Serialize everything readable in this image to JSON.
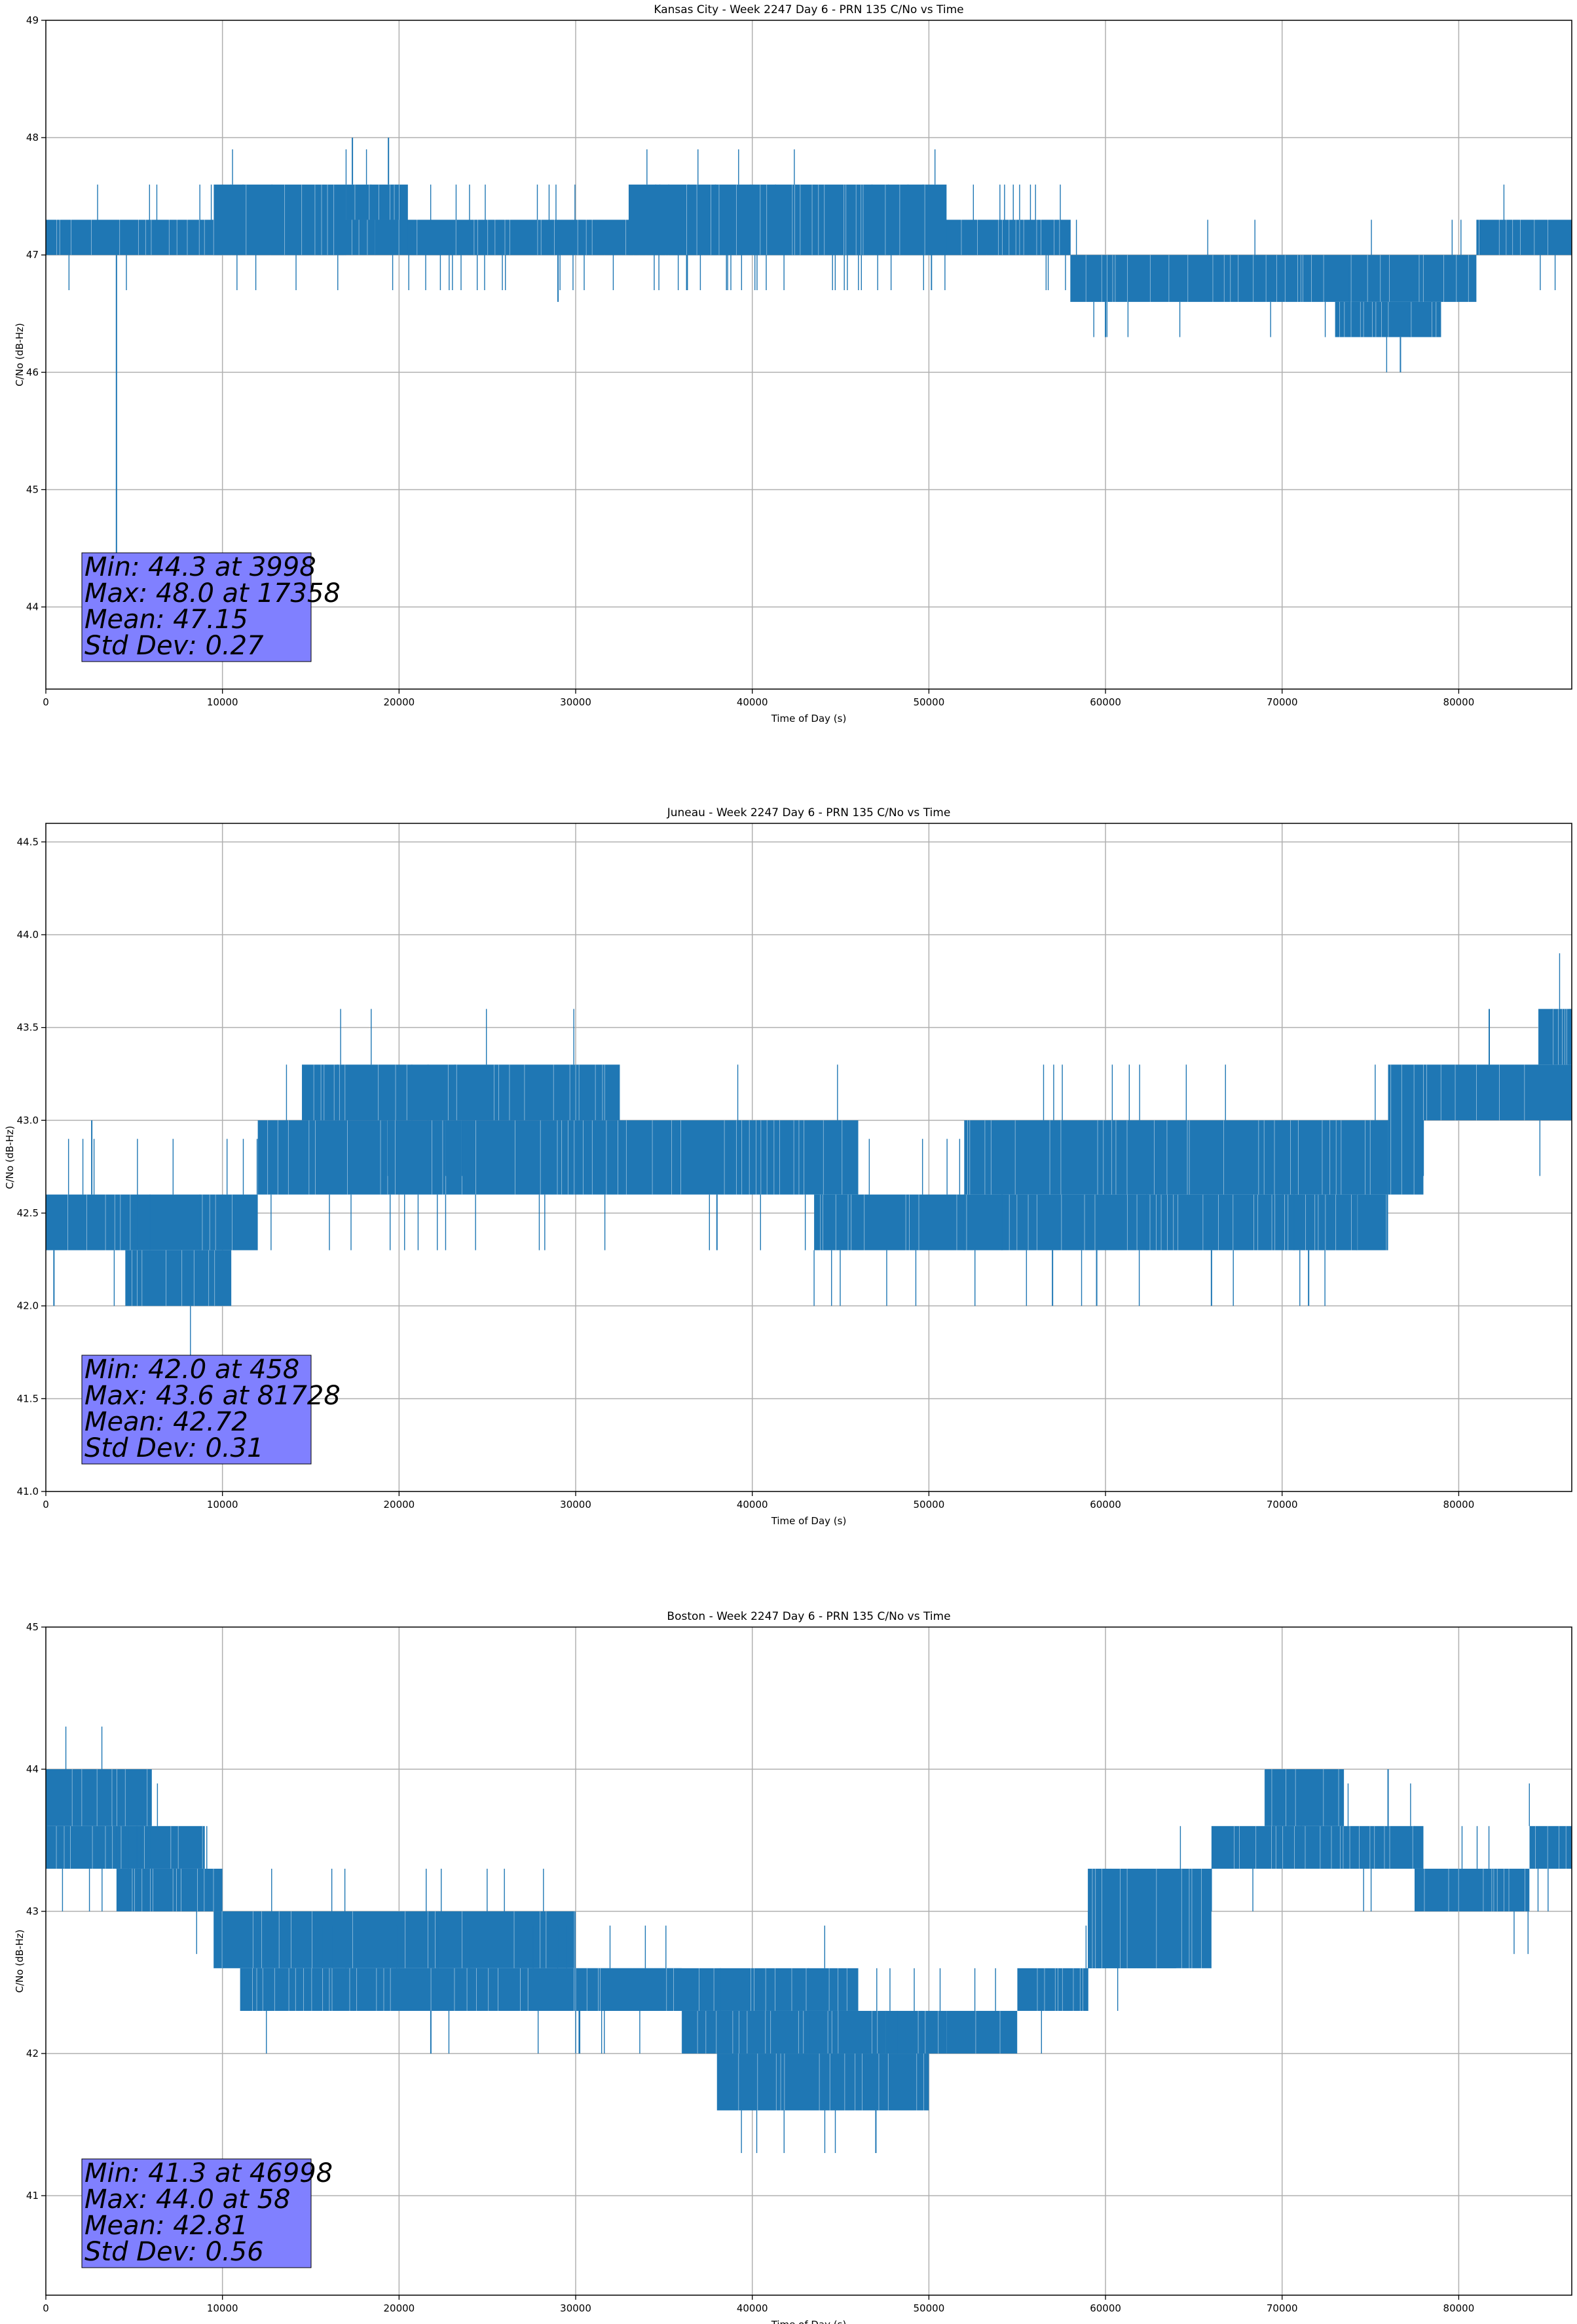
{
  "chart_data": [
    {
      "type": "line",
      "title": "Kansas City - Week 2247 Day 6 - PRN 135 C/No vs Time",
      "xlabel": "Time of Day (s)",
      "ylabel": "C/No (dB-Hz)",
      "xlim": [
        0,
        86400
      ],
      "ylim": [
        43.3,
        49.0
      ],
      "xticks": [
        0,
        10000,
        20000,
        30000,
        40000,
        50000,
        60000,
        70000,
        80000
      ],
      "xtick_labels": [
        "0",
        "10000",
        "20000",
        "30000",
        "40000",
        "50000",
        "60000",
        "70000",
        "80000"
      ],
      "yticks": [
        44,
        45,
        46,
        47,
        48,
        49
      ],
      "ytick_labels": [
        "44",
        "45",
        "46",
        "47",
        "48",
        "49"
      ],
      "grid": true,
      "line_color": "#1f77b4",
      "series": [
        {
          "name": "C/No",
          "segments": [
            {
              "x": [
                0,
                58000
              ],
              "low": 47.0,
              "high": 47.3
            },
            {
              "x": [
                9500,
                17000
              ],
              "low": 47.0,
              "high": 47.6
            },
            {
              "x": [
                17000,
                20500
              ],
              "low": 47.3,
              "high": 47.6
            },
            {
              "x": [
                20500,
                58000
              ],
              "low": 47.0,
              "high": 47.3
            },
            {
              "x": [
                33000,
                51000
              ],
              "low": 47.0,
              "high": 47.6
            },
            {
              "x": [
                58000,
                81000
              ],
              "low": 46.6,
              "high": 47.0
            },
            {
              "x": [
                73000,
                79000
              ],
              "low": 46.3,
              "high": 46.6
            },
            {
              "x": [
                81000,
                86400
              ],
              "low": 47.0,
              "high": 47.3
            }
          ],
          "spikes": [
            {
              "x": 3998,
              "y": 44.3
            },
            {
              "x": 17358,
              "y": 48.0
            },
            {
              "x": 19400,
              "y": 48.0
            },
            {
              "x": 29000,
              "y": 46.6
            },
            {
              "x": 60000,
              "y": 46.3
            },
            {
              "x": 76700,
              "y": 46.0
            }
          ]
        }
      ],
      "annotation": {
        "lines": [
          "Min: 44.3 at 3998",
          "Max: 48.0 at 17358",
          "Mean: 47.15",
          "Std Dev: 0.27"
        ],
        "min": 44.3,
        "min_time": 3998,
        "max": 48.0,
        "max_time": 17358,
        "mean": 47.15,
        "std_dev": 0.27,
        "box_color": "#8080ff"
      }
    },
    {
      "type": "line",
      "title": "Juneau - Week 2247 Day 6 - PRN 135 C/No vs Time",
      "xlabel": "Time of Day (s)",
      "ylabel": "C/No (dB-Hz)",
      "xlim": [
        0,
        86400
      ],
      "ylim": [
        41.0,
        44.6
      ],
      "xticks": [
        0,
        10000,
        20000,
        30000,
        40000,
        50000,
        60000,
        70000,
        80000
      ],
      "xtick_labels": [
        "0",
        "10000",
        "20000",
        "30000",
        "40000",
        "50000",
        "60000",
        "70000",
        "80000"
      ],
      "yticks": [
        41.0,
        41.5,
        42.0,
        42.5,
        43.0,
        43.5,
        44.0,
        44.5
      ],
      "ytick_labels": [
        "41.0",
        "41.5",
        "42.0",
        "42.5",
        "43.0",
        "43.5",
        "44.0",
        "44.5"
      ],
      "grid": true,
      "line_color": "#1f77b4",
      "series": [
        {
          "name": "C/No",
          "segments": [
            {
              "x": [
                0,
                12000
              ],
              "low": 42.3,
              "high": 42.6
            },
            {
              "x": [
                4500,
                10500
              ],
              "low": 42.0,
              "high": 42.3
            },
            {
              "x": [
                12000,
                46000
              ],
              "low": 42.6,
              "high": 43.0
            },
            {
              "x": [
                14500,
                32500
              ],
              "low": 43.0,
              "high": 43.3
            },
            {
              "x": [
                43500,
                76000
              ],
              "low": 42.3,
              "high": 42.6
            },
            {
              "x": [
                52000,
                76000
              ],
              "low": 42.6,
              "high": 43.0
            },
            {
              "x": [
                76000,
                78000
              ],
              "low": 42.6,
              "high": 43.3
            },
            {
              "x": [
                78000,
                86400
              ],
              "low": 43.0,
              "high": 43.3
            },
            {
              "x": [
                84500,
                86400
              ],
              "low": 43.3,
              "high": 43.6
            }
          ],
          "spikes": [
            {
              "x": 458,
              "y": 42.0
            },
            {
              "x": 2600,
              "y": 43.0
            },
            {
              "x": 38000,
              "y": 42.3
            },
            {
              "x": 57000,
              "y": 42.0
            },
            {
              "x": 59500,
              "y": 42.0
            },
            {
              "x": 66000,
              "y": 42.0
            },
            {
              "x": 71500,
              "y": 42.0
            },
            {
              "x": 81728,
              "y": 43.6
            }
          ]
        }
      ],
      "annotation": {
        "lines": [
          "Min: 42.0 at 458",
          "Max: 43.6 at 81728",
          "Mean: 42.72",
          "Std Dev: 0.31"
        ],
        "min": 42.0,
        "min_time": 458,
        "max": 43.6,
        "max_time": 81728,
        "mean": 42.72,
        "std_dev": 0.31,
        "box_color": "#8080ff"
      }
    },
    {
      "type": "line",
      "title": "Boston - Week 2247 Day 6 - PRN 135 C/No vs Time",
      "xlabel": "Time of Day (s)",
      "ylabel": "C/No (dB-Hz)",
      "xlim": [
        0,
        86400
      ],
      "ylim": [
        40.3,
        45.0
      ],
      "xticks": [
        0,
        10000,
        20000,
        30000,
        40000,
        50000,
        60000,
        70000,
        80000
      ],
      "xtick_labels": [
        "0",
        "10000",
        "20000",
        "30000",
        "40000",
        "50000",
        "60000",
        "70000",
        "80000"
      ],
      "yticks": [
        41,
        42,
        43,
        44,
        45
      ],
      "ytick_labels": [
        "41",
        "42",
        "43",
        "44",
        "45"
      ],
      "grid": true,
      "line_color": "#1f77b4",
      "series": [
        {
          "name": "C/No",
          "segments": [
            {
              "x": [
                0,
                9000
              ],
              "low": 43.3,
              "high": 43.6
            },
            {
              "x": [
                0,
                6000
              ],
              "low": 43.6,
              "high": 44.0
            },
            {
              "x": [
                4000,
                10000
              ],
              "low": 43.0,
              "high": 43.3
            },
            {
              "x": [
                9500,
                30000
              ],
              "low": 42.6,
              "high": 43.0
            },
            {
              "x": [
                11000,
                36000
              ],
              "low": 42.3,
              "high": 42.6
            },
            {
              "x": [
                30000,
                46000
              ],
              "low": 42.3,
              "high": 42.6
            },
            {
              "x": [
                36000,
                51000
              ],
              "low": 42.0,
              "high": 42.3
            },
            {
              "x": [
                38000,
                50000
              ],
              "low": 41.6,
              "high": 42.0
            },
            {
              "x": [
                51000,
                55000
              ],
              "low": 42.0,
              "high": 42.3
            },
            {
              "x": [
                55000,
                59000
              ],
              "low": 42.3,
              "high": 42.6
            },
            {
              "x": [
                59000,
                64000
              ],
              "low": 42.6,
              "high": 43.0
            },
            {
              "x": [
                59000,
                66000
              ],
              "low": 42.6,
              "high": 43.3
            },
            {
              "x": [
                66000,
                78000
              ],
              "low": 43.3,
              "high": 43.6
            },
            {
              "x": [
                69000,
                73500
              ],
              "low": 43.6,
              "high": 44.0
            },
            {
              "x": [
                77500,
                84000
              ],
              "low": 43.0,
              "high": 43.3
            },
            {
              "x": [
                84000,
                86400
              ],
              "low": 43.3,
              "high": 43.6
            }
          ],
          "spikes": [
            {
              "x": 58,
              "y": 44.0
            },
            {
              "x": 4500,
              "y": 43.0
            },
            {
              "x": 21800,
              "y": 42.0
            },
            {
              "x": 30200,
              "y": 42.0
            },
            {
              "x": 46998,
              "y": 41.3
            },
            {
              "x": 76000,
              "y": 44.0
            }
          ]
        }
      ],
      "annotation": {
        "lines": [
          "Min: 41.3 at 46998",
          "Max: 44.0 at 58",
          "Mean: 42.81",
          "Std Dev: 0.56"
        ],
        "min": 41.3,
        "min_time": 46998,
        "max": 44.0,
        "max_time": 58,
        "mean": 42.81,
        "std_dev": 0.56,
        "box_color": "#8080ff"
      }
    }
  ]
}
